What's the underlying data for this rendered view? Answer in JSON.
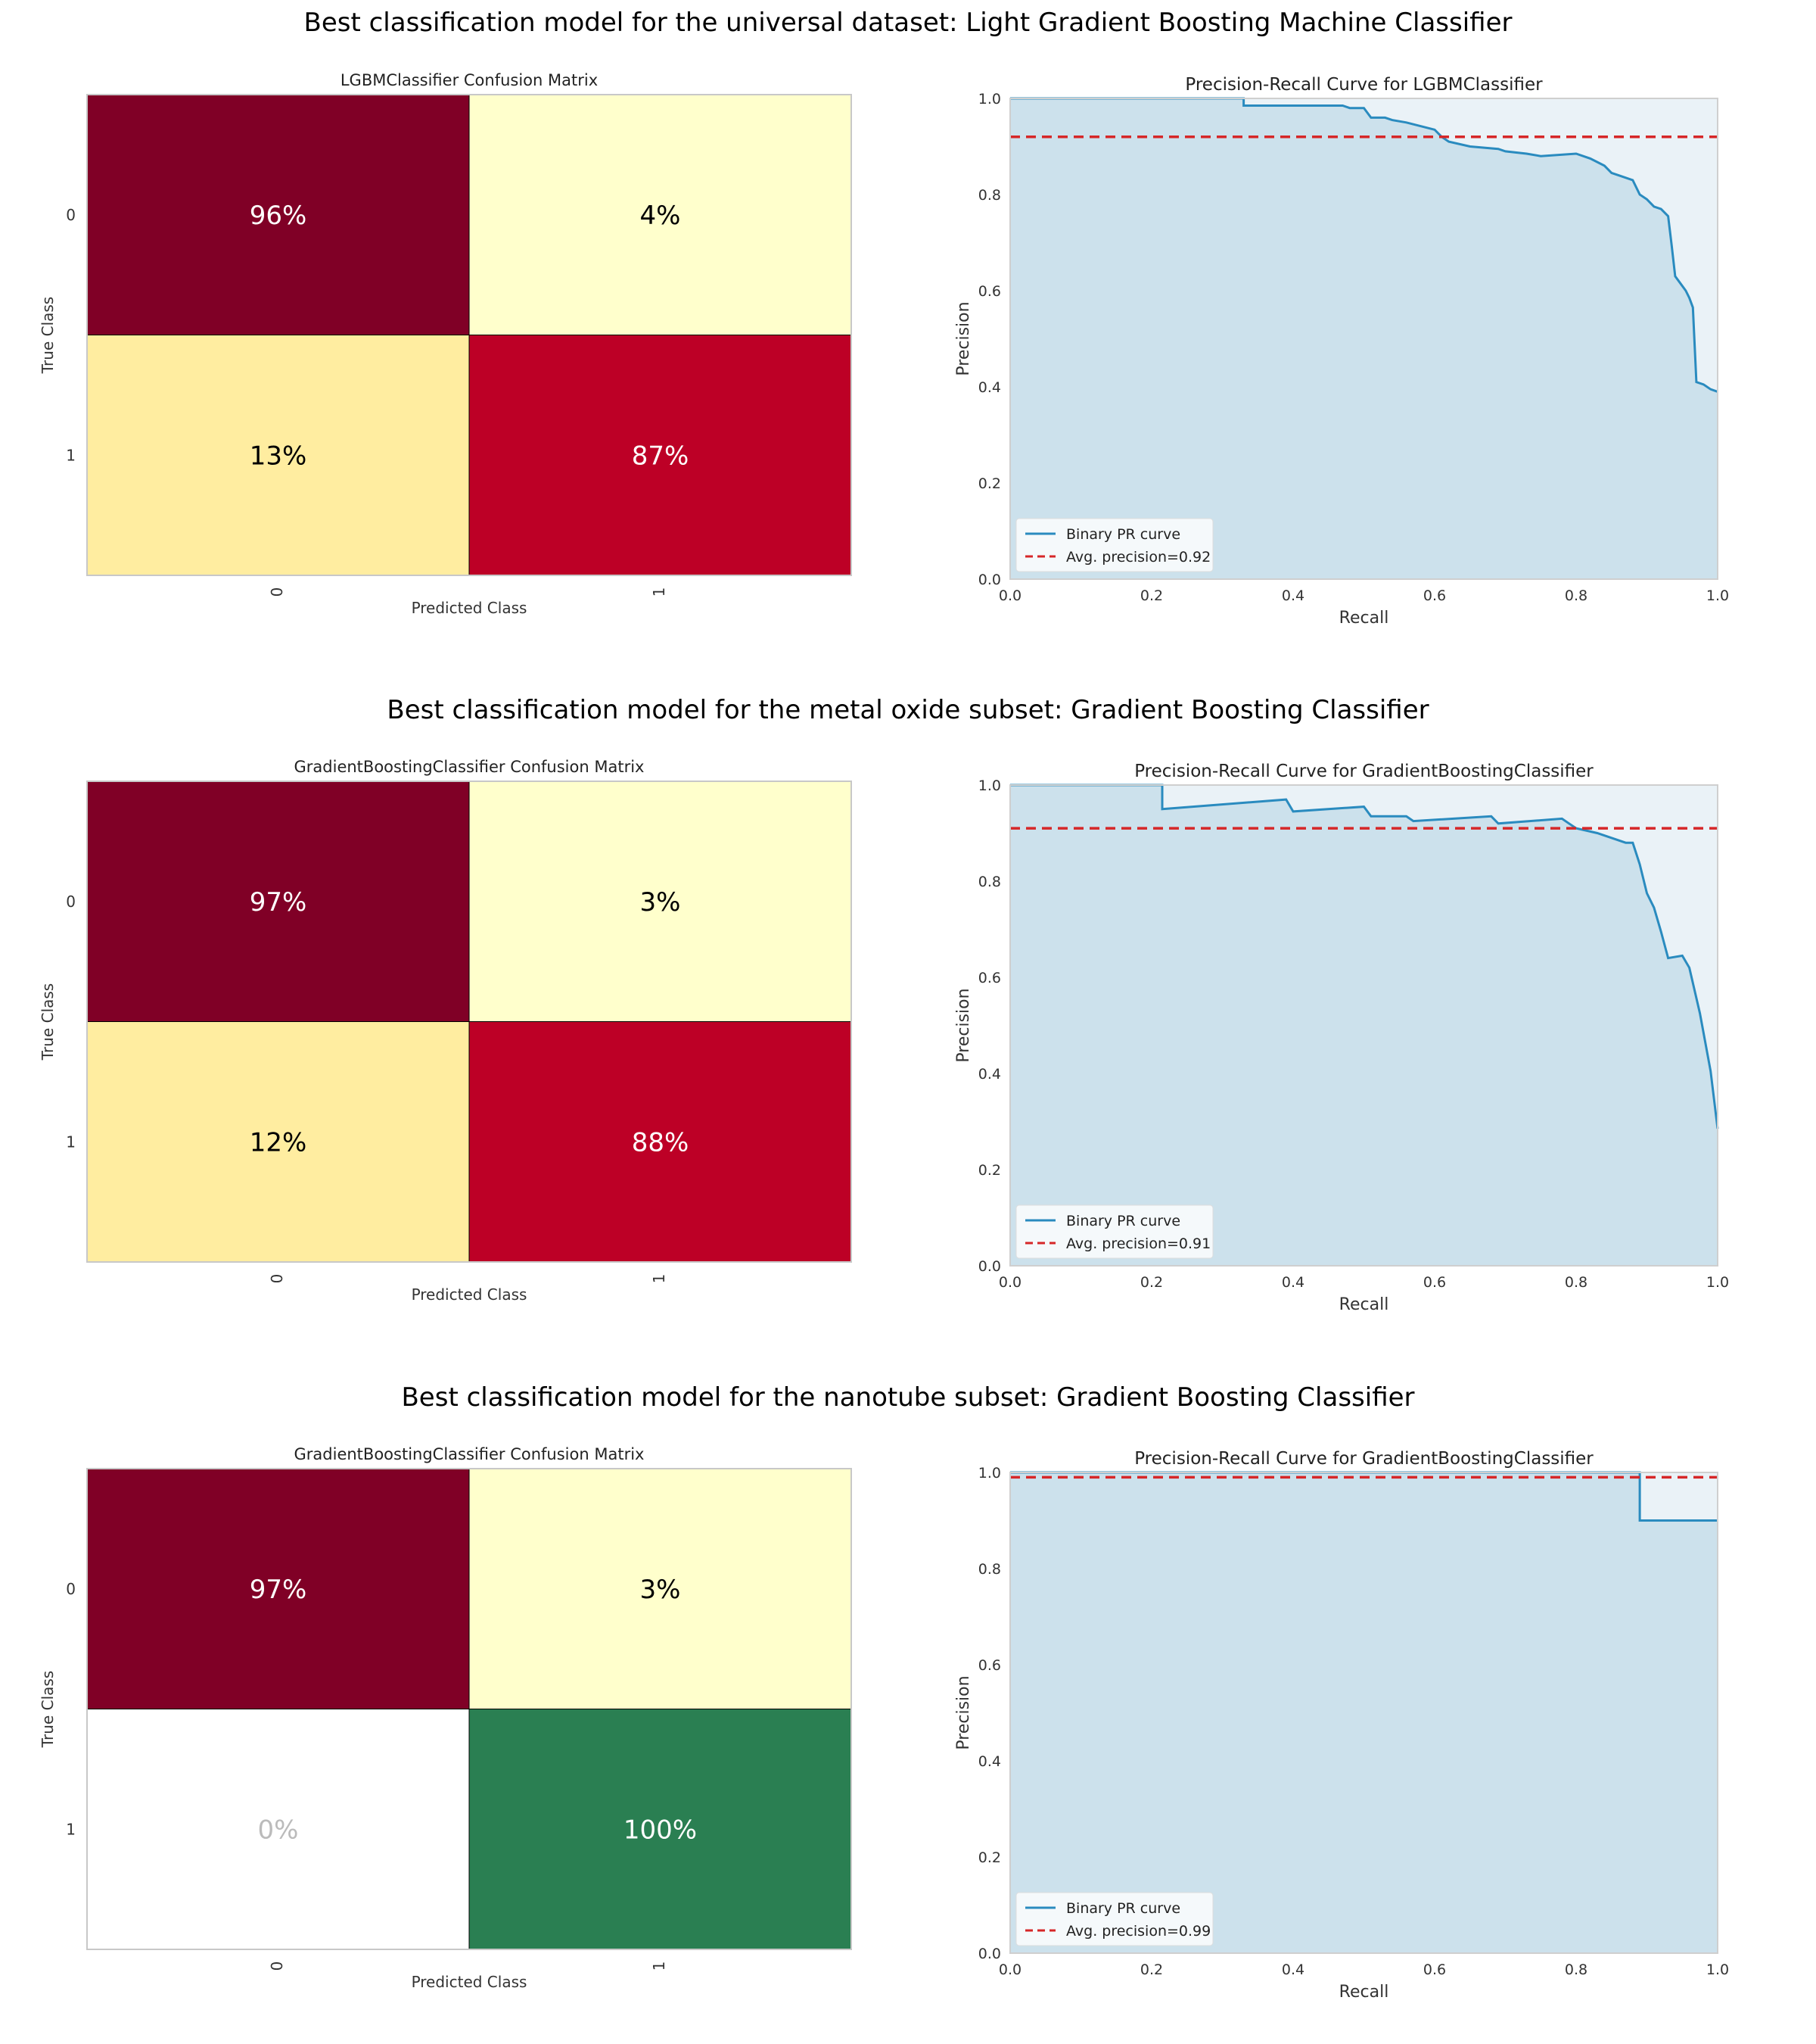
{
  "rows": [
    {
      "title": "Best classification model for the universal dataset: Light Gradient Boosting Machine Classifier",
      "confusion": {
        "title": "LGBMClassifier Confusion Matrix",
        "xlabel": "Predicted Class",
        "ylabel": "True Class",
        "row_ticks": [
          "0",
          "1"
        ],
        "col_ticks": [
          "0",
          "1"
        ],
        "cells": [
          {
            "row": 0,
            "col": 0,
            "value": 96,
            "label": "96%",
            "color": "#800026",
            "text_color": "#ffffff"
          },
          {
            "row": 0,
            "col": 1,
            "value": 4,
            "label": "4%",
            "color": "#ffffcc",
            "text_color": "#000000"
          },
          {
            "row": 1,
            "col": 0,
            "value": 13,
            "label": "13%",
            "color": "#ffeda0",
            "text_color": "#000000"
          },
          {
            "row": 1,
            "col": 1,
            "value": 87,
            "label": "87%",
            "color": "#bd0026",
            "text_color": "#ffffff"
          }
        ]
      },
      "pr": {
        "title": "Precision-Recall Curve for LGBMClassifier",
        "xlabel": "Recall",
        "ylabel": "Precision",
        "xticks": [
          "0.0",
          "0.2",
          "0.4",
          "0.6",
          "0.8",
          "1.0"
        ],
        "yticks": [
          "0.0",
          "0.2",
          "0.4",
          "0.6",
          "0.8",
          "1.0"
        ],
        "legend": {
          "curve": "Binary PR curve",
          "avg": "Avg. precision=0.92"
        }
      }
    },
    {
      "title": "Best classification model for the metal oxide subset: Gradient Boosting Classifier",
      "confusion": {
        "title": "GradientBoostingClassifier Confusion Matrix",
        "xlabel": "Predicted Class",
        "ylabel": "True Class",
        "row_ticks": [
          "0",
          "1"
        ],
        "col_ticks": [
          "0",
          "1"
        ],
        "cells": [
          {
            "row": 0,
            "col": 0,
            "value": 97,
            "label": "97%",
            "color": "#800026",
            "text_color": "#ffffff"
          },
          {
            "row": 0,
            "col": 1,
            "value": 3,
            "label": "3%",
            "color": "#ffffcc",
            "text_color": "#000000"
          },
          {
            "row": 1,
            "col": 0,
            "value": 12,
            "label": "12%",
            "color": "#ffeda0",
            "text_color": "#000000"
          },
          {
            "row": 1,
            "col": 1,
            "value": 88,
            "label": "88%",
            "color": "#bd0026",
            "text_color": "#ffffff"
          }
        ]
      },
      "pr": {
        "title": "Precision-Recall Curve for GradientBoostingClassifier",
        "xlabel": "Recall",
        "ylabel": "Precision",
        "xticks": [
          "0.0",
          "0.2",
          "0.4",
          "0.6",
          "0.8",
          "1.0"
        ],
        "yticks": [
          "0.0",
          "0.2",
          "0.4",
          "0.6",
          "0.8",
          "1.0"
        ],
        "legend": {
          "curve": "Binary PR curve",
          "avg": "Avg. precision=0.91"
        }
      }
    },
    {
      "title": "Best classification model for the nanotube subset: Gradient Boosting Classifier",
      "confusion": {
        "title": "GradientBoostingClassifier Confusion Matrix",
        "xlabel": "Predicted Class",
        "ylabel": "True Class",
        "row_ticks": [
          "0",
          "1"
        ],
        "col_ticks": [
          "0",
          "1"
        ],
        "cells": [
          {
            "row": 0,
            "col": 0,
            "value": 97,
            "label": "97%",
            "color": "#800026",
            "text_color": "#ffffff"
          },
          {
            "row": 0,
            "col": 1,
            "value": 3,
            "label": "3%",
            "color": "#ffffcc",
            "text_color": "#000000"
          },
          {
            "row": 1,
            "col": 0,
            "value": 0,
            "label": "0%",
            "color": "#ffffff",
            "text_color": "#bbbbbb"
          },
          {
            "row": 1,
            "col": 1,
            "value": 100,
            "label": "100%",
            "color": "#2a7f52",
            "text_color": "#ffffff"
          }
        ]
      },
      "pr": {
        "title": "Precision-Recall Curve for GradientBoostingClassifier",
        "xlabel": "Recall",
        "ylabel": "Precision",
        "xticks": [
          "0.0",
          "0.2",
          "0.4",
          "0.6",
          "0.8",
          "1.0"
        ],
        "yticks": [
          "0.0",
          "0.2",
          "0.4",
          "0.6",
          "0.8",
          "1.0"
        ],
        "legend": {
          "curve": "Binary PR curve",
          "avg": "Avg. precision=0.99"
        }
      }
    }
  ],
  "chart_data": [
    {
      "type": "heatmap",
      "title": "LGBMClassifier Confusion Matrix",
      "xlabel": "Predicted Class",
      "ylabel": "True Class",
      "x_categories": [
        "0",
        "1"
      ],
      "y_categories": [
        "0",
        "1"
      ],
      "values": [
        [
          96,
          4
        ],
        [
          13,
          87
        ]
      ],
      "unit": "%"
    },
    {
      "type": "line",
      "title": "Precision-Recall Curve for LGBMClassifier",
      "xlabel": "Recall",
      "ylabel": "Precision",
      "xlim": [
        0,
        1
      ],
      "ylim": [
        0,
        1
      ],
      "grid": false,
      "legend": "lower-left",
      "fill_under_curve": true,
      "series": [
        {
          "name": "Binary PR curve",
          "color": "#2a8bbf",
          "step": true,
          "x": [
            0,
            0.33,
            0.33,
            0.47,
            0.48,
            0.5,
            0.51,
            0.53,
            0.54,
            0.56,
            0.6,
            0.61,
            0.62,
            0.65,
            0.69,
            0.7,
            0.73,
            0.75,
            0.8,
            0.82,
            0.84,
            0.85,
            0.86,
            0.88,
            0.89,
            0.9,
            0.91,
            0.92,
            0.93,
            0.935,
            0.94,
            0.945,
            0.955,
            0.96,
            0.965,
            0.97,
            0.98,
            0.99,
            1.0
          ],
          "y": [
            1.0,
            1.0,
            0.985,
            0.985,
            0.98,
            0.98,
            0.96,
            0.96,
            0.955,
            0.95,
            0.935,
            0.92,
            0.91,
            0.9,
            0.895,
            0.89,
            0.885,
            0.88,
            0.885,
            0.875,
            0.86,
            0.845,
            0.84,
            0.83,
            0.8,
            0.79,
            0.775,
            0.77,
            0.755,
            0.695,
            0.63,
            0.62,
            0.6,
            0.585,
            0.565,
            0.41,
            0.405,
            0.395,
            0.39
          ]
        },
        {
          "name": "Avg. precision=0.92",
          "color": "#d62728",
          "dashed": true,
          "x": [
            0,
            1
          ],
          "y": [
            0.92,
            0.92
          ]
        }
      ]
    },
    {
      "type": "heatmap",
      "title": "GradientBoostingClassifier Confusion Matrix",
      "xlabel": "Predicted Class",
      "ylabel": "True Class",
      "x_categories": [
        "0",
        "1"
      ],
      "y_categories": [
        "0",
        "1"
      ],
      "values": [
        [
          97,
          3
        ],
        [
          12,
          88
        ]
      ],
      "unit": "%"
    },
    {
      "type": "line",
      "title": "Precision-Recall Curve for GradientBoostingClassifier",
      "xlabel": "Recall",
      "ylabel": "Precision",
      "xlim": [
        0,
        1
      ],
      "ylim": [
        0,
        1
      ],
      "grid": false,
      "legend": "lower-left",
      "fill_under_curve": true,
      "series": [
        {
          "name": "Binary PR curve",
          "color": "#2a8bbf",
          "step": true,
          "x": [
            0,
            0.215,
            0.215,
            0.39,
            0.4,
            0.5,
            0.51,
            0.56,
            0.57,
            0.68,
            0.69,
            0.78,
            0.79,
            0.8,
            0.83,
            0.87,
            0.88,
            0.89,
            0.9,
            0.91,
            0.92,
            0.93,
            0.95,
            0.96,
            0.975,
            0.99,
            1.0
          ],
          "y": [
            1.0,
            1.0,
            0.95,
            0.97,
            0.945,
            0.955,
            0.935,
            0.935,
            0.925,
            0.935,
            0.92,
            0.93,
            0.92,
            0.91,
            0.9,
            0.88,
            0.88,
            0.835,
            0.775,
            0.745,
            0.695,
            0.64,
            0.645,
            0.62,
            0.525,
            0.405,
            0.285
          ]
        },
        {
          "name": "Avg. precision=0.91",
          "color": "#d62728",
          "dashed": true,
          "x": [
            0,
            1
          ],
          "y": [
            0.91,
            0.91
          ]
        }
      ]
    },
    {
      "type": "heatmap",
      "title": "GradientBoostingClassifier Confusion Matrix",
      "xlabel": "Predicted Class",
      "ylabel": "True Class",
      "x_categories": [
        "0",
        "1"
      ],
      "y_categories": [
        "0",
        "1"
      ],
      "values": [
        [
          97,
          3
        ],
        [
          0,
          100
        ]
      ],
      "unit": "%"
    },
    {
      "type": "line",
      "title": "Precision-Recall Curve for GradientBoostingClassifier",
      "xlabel": "Recall",
      "ylabel": "Precision",
      "xlim": [
        0,
        1
      ],
      "ylim": [
        0,
        1
      ],
      "grid": false,
      "legend": "lower-left",
      "fill_under_curve": true,
      "series": [
        {
          "name": "Binary PR curve",
          "color": "#2a8bbf",
          "step": true,
          "x": [
            0,
            0.89,
            0.89,
            1.0
          ],
          "y": [
            1.0,
            1.0,
            0.9,
            0.9
          ]
        },
        {
          "name": "Avg. precision=0.99",
          "color": "#d62728",
          "dashed": true,
          "x": [
            0,
            1
          ],
          "y": [
            0.99,
            0.99
          ]
        }
      ]
    }
  ]
}
